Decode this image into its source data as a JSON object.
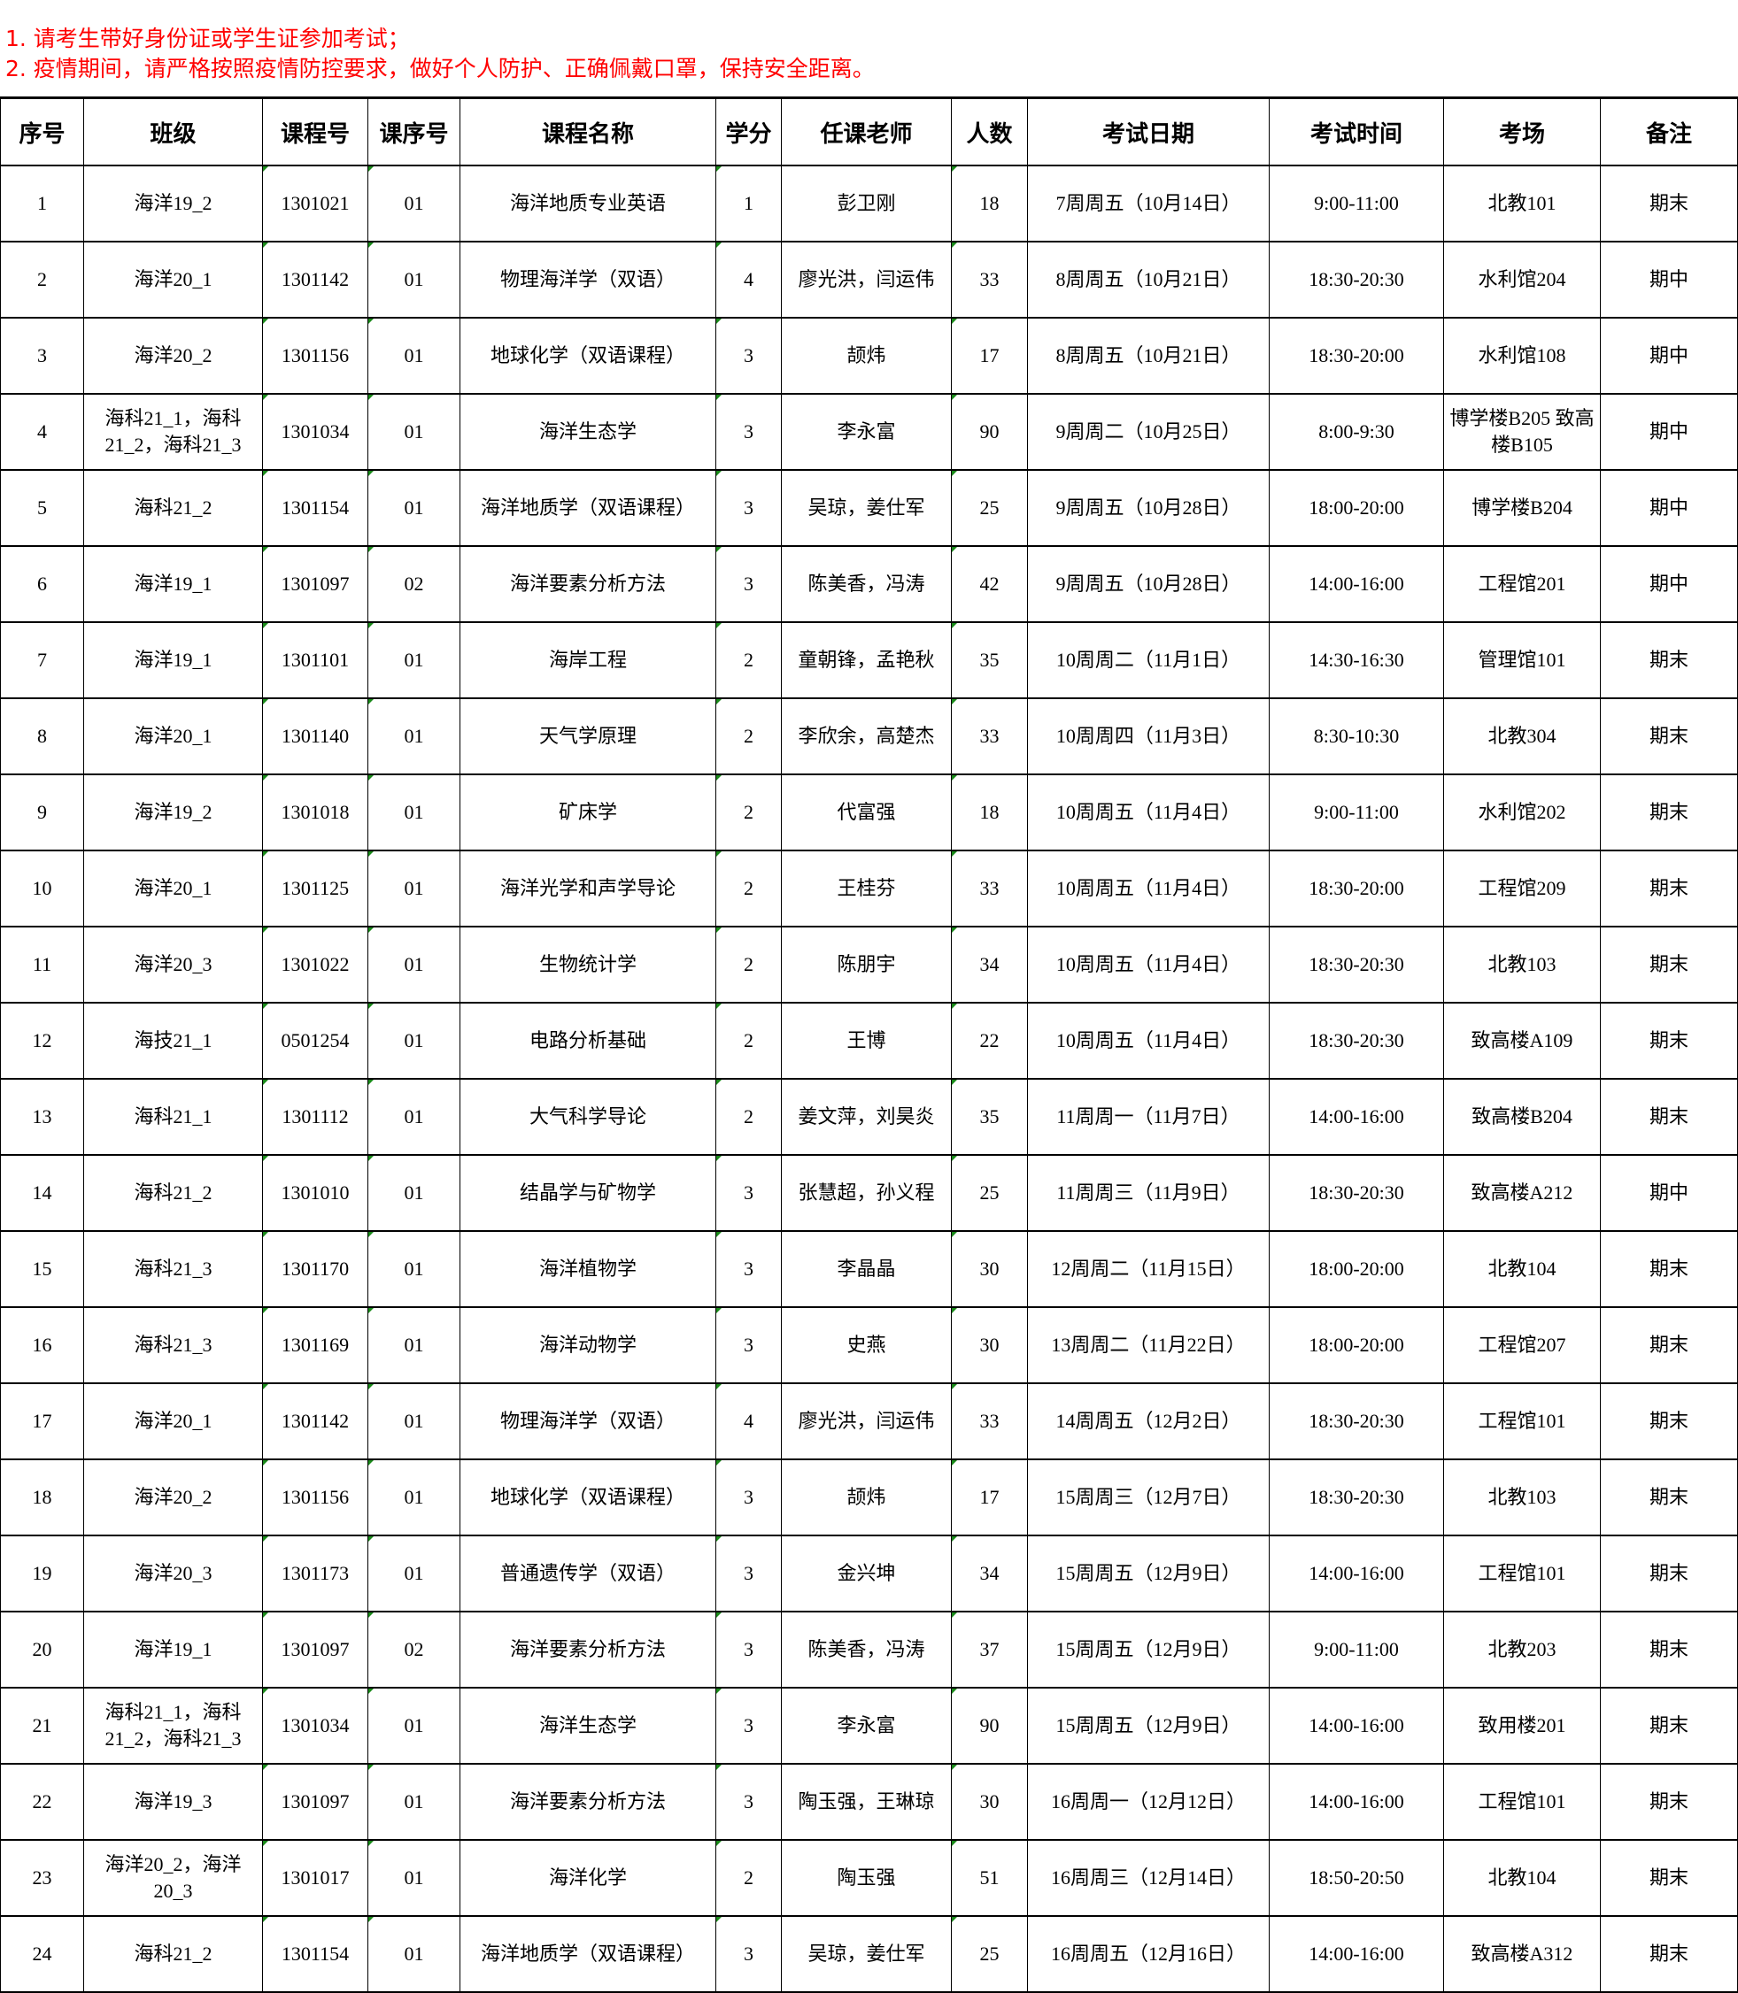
{
  "notices": [
    "1. 请考生带好身份证或学生证参加考试；",
    "2. 疫情期间，请严格按照疫情防控要求，做好个人防护、正确佩戴口罩，保持安全距离。"
  ],
  "colors": {
    "notice": "#ff0000",
    "marker": "#1a8a1a"
  },
  "table": {
    "headers": [
      "序号",
      "班级",
      "课程号",
      "课序号",
      "课程名称",
      "学分",
      "任课老师",
      "人数",
      "考试日期",
      "考试时间",
      "考场",
      "备注"
    ],
    "rows": [
      [
        "1",
        "海洋19_2",
        "1301021",
        "01",
        "海洋地质专业英语",
        "1",
        "彭卫刚",
        "18",
        "7周周五（10月14日）",
        "9:00-11:00",
        "北教101",
        "期末"
      ],
      [
        "2",
        "海洋20_1",
        "1301142",
        "01",
        "物理海洋学（双语）",
        "4",
        "廖光洪，闫运伟",
        "33",
        "8周周五（10月21日）",
        "18:30-20:30",
        "水利馆204",
        "期中"
      ],
      [
        "3",
        "海洋20_2",
        "1301156",
        "01",
        "地球化学（双语课程）",
        "3",
        "颉炜",
        "17",
        "8周周五（10月21日）",
        "18:30-20:00",
        "水利馆108",
        "期中"
      ],
      [
        "4",
        "海科21_1，海科21_2，海科21_3",
        "1301034",
        "01",
        "海洋生态学",
        "3",
        "李永富",
        "90",
        "9周周二（10月25日）",
        "8:00-9:30",
        "博学楼B205 致高楼B105",
        "期中"
      ],
      [
        "5",
        "海科21_2",
        "1301154",
        "01",
        "海洋地质学（双语课程）",
        "3",
        "吴琼，姜仕军",
        "25",
        "9周周五（10月28日）",
        "18:00-20:00",
        "博学楼B204",
        "期中"
      ],
      [
        "6",
        "海洋19_1",
        "1301097",
        "02",
        "海洋要素分析方法",
        "3",
        "陈美香，冯涛",
        "42",
        "9周周五（10月28日）",
        "14:00-16:00",
        "工程馆201",
        "期中"
      ],
      [
        "7",
        "海洋19_1",
        "1301101",
        "01",
        "海岸工程",
        "2",
        "童朝锋，孟艳秋",
        "35",
        "10周周二（11月1日）",
        "14:30-16:30",
        "管理馆101",
        "期末"
      ],
      [
        "8",
        "海洋20_1",
        "1301140",
        "01",
        "天气学原理",
        "2",
        "李欣余，高楚杰",
        "33",
        "10周周四（11月3日）",
        "8:30-10:30",
        "北教304",
        "期末"
      ],
      [
        "9",
        "海洋19_2",
        "1301018",
        "01",
        "矿床学",
        "2",
        "代富强",
        "18",
        "10周周五（11月4日）",
        "9:00-11:00",
        "水利馆202",
        "期末"
      ],
      [
        "10",
        "海洋20_1",
        "1301125",
        "01",
        "海洋光学和声学导论",
        "2",
        "王桂芬",
        "33",
        "10周周五（11月4日）",
        "18:30-20:00",
        "工程馆209",
        "期末"
      ],
      [
        "11",
        "海洋20_3",
        "1301022",
        "01",
        "生物统计学",
        "2",
        "陈朋宇",
        "34",
        "10周周五（11月4日）",
        "18:30-20:30",
        "北教103",
        "期末"
      ],
      [
        "12",
        "海技21_1",
        "0501254",
        "01",
        "电路分析基础",
        "2",
        "王博",
        "22",
        "10周周五（11月4日）",
        "18:30-20:30",
        "致高楼A109",
        "期末"
      ],
      [
        "13",
        "海科21_1",
        "1301112",
        "01",
        "大气科学导论",
        "2",
        "姜文萍，刘昊炎",
        "35",
        "11周周一（11月7日）",
        "14:00-16:00",
        "致高楼B204",
        "期末"
      ],
      [
        "14",
        "海科21_2",
        "1301010",
        "01",
        "结晶学与矿物学",
        "3",
        "张慧超，孙义程",
        "25",
        "11周周三（11月9日）",
        "18:30-20:30",
        "致高楼A212",
        "期中"
      ],
      [
        "15",
        "海科21_3",
        "1301170",
        "01",
        "海洋植物学",
        "3",
        "李晶晶",
        "30",
        "12周周二（11月15日）",
        "18:00-20:00",
        "北教104",
        "期末"
      ],
      [
        "16",
        "海科21_3",
        "1301169",
        "01",
        "海洋动物学",
        "3",
        "史燕",
        "30",
        "13周周二（11月22日）",
        "18:00-20:00",
        "工程馆207",
        "期末"
      ],
      [
        "17",
        "海洋20_1",
        "1301142",
        "01",
        "物理海洋学（双语）",
        "4",
        "廖光洪，闫运伟",
        "33",
        "14周周五（12月2日）",
        "18:30-20:30",
        "工程馆101",
        "期末"
      ],
      [
        "18",
        "海洋20_2",
        "1301156",
        "01",
        "地球化学（双语课程）",
        "3",
        "颉炜",
        "17",
        "15周周三（12月7日）",
        "18:30-20:30",
        "北教103",
        "期末"
      ],
      [
        "19",
        "海洋20_3",
        "1301173",
        "01",
        "普通遗传学（双语）",
        "3",
        "金兴坤",
        "34",
        "15周周五（12月9日）",
        "14:00-16:00",
        "工程馆101",
        "期末"
      ],
      [
        "20",
        "海洋19_1",
        "1301097",
        "02",
        "海洋要素分析方法",
        "3",
        "陈美香，冯涛",
        "37",
        "15周周五（12月9日）",
        "9:00-11:00",
        "北教203",
        "期末"
      ],
      [
        "21",
        "海科21_1，海科21_2，海科21_3",
        "1301034",
        "01",
        "海洋生态学",
        "3",
        "李永富",
        "90",
        "15周周五（12月9日）",
        "14:00-16:00",
        "致用楼201",
        "期末"
      ],
      [
        "22",
        "海洋19_3",
        "1301097",
        "01",
        "海洋要素分析方法",
        "3",
        "陶玉强，王琳琼",
        "30",
        "16周周一（12月12日）",
        "14:00-16:00",
        "工程馆101",
        "期末"
      ],
      [
        "23",
        "海洋20_2，海洋20_3",
        "1301017",
        "01",
        "海洋化学",
        "2",
        "陶玉强",
        "51",
        "16周周三（12月14日）",
        "18:50-20:50",
        "北教104",
        "期末"
      ],
      [
        "24",
        "海科21_2",
        "1301154",
        "01",
        "海洋地质学（双语课程）",
        "3",
        "吴琼，姜仕军",
        "25",
        "16周周五（12月16日）",
        "14:00-16:00",
        "致高楼A312",
        "期末"
      ]
    ]
  }
}
